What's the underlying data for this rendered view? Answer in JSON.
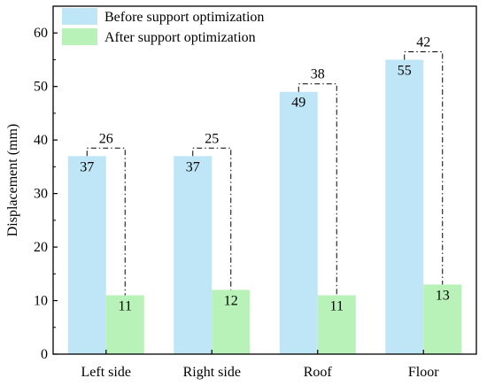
{
  "chart_data": {
    "type": "bar",
    "title": "",
    "xlabel": "",
    "ylabel": "Displacement (mm)",
    "categories": [
      "Left side",
      "Right side",
      "Roof",
      "Floor"
    ],
    "series": [
      {
        "name": "Before support optimization",
        "values": [
          37,
          37,
          49,
          55
        ],
        "color": "#bfe6f7"
      },
      {
        "name": "After support optimization",
        "values": [
          11,
          12,
          11,
          13
        ],
        "color": "#b8f2b8"
      }
    ],
    "differences": [
      26,
      25,
      38,
      42
    ],
    "ylim": [
      0,
      65
    ],
    "yticks": [
      0,
      10,
      20,
      30,
      40,
      50,
      60
    ],
    "grid": false,
    "legend_position": "top-left"
  }
}
